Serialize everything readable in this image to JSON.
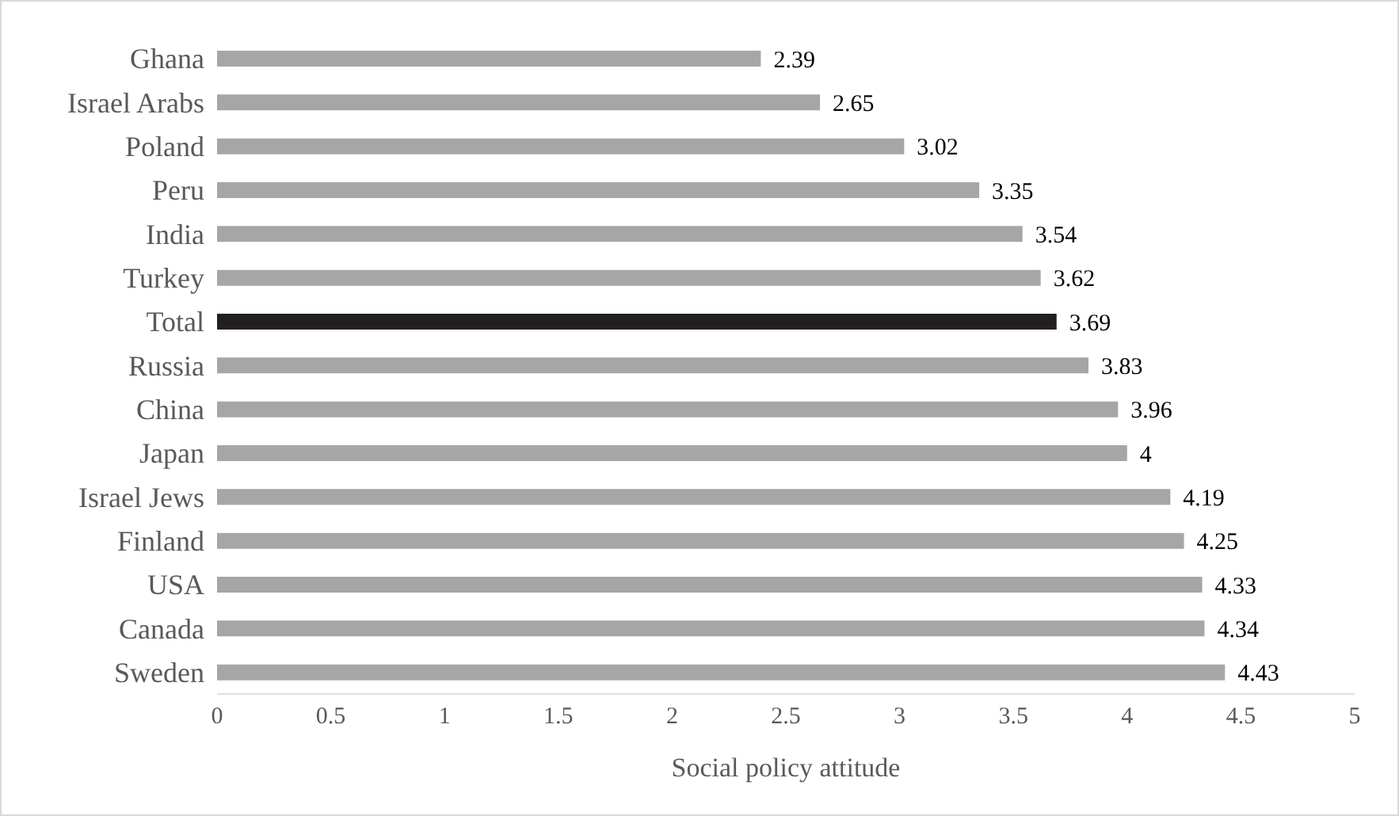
{
  "chart_data": {
    "type": "bar",
    "orientation": "horizontal",
    "xlabel": "Social policy attitude",
    "categories": [
      "Ghana",
      "Israel Arabs",
      "Poland",
      "Peru",
      "India",
      "Turkey",
      "Total",
      "Russia",
      "China",
      "Japan",
      "Israel Jews",
      "Finland",
      "USA",
      "Canada",
      "Sweden"
    ],
    "values": [
      2.39,
      2.65,
      3.02,
      3.35,
      3.54,
      3.62,
      3.69,
      3.83,
      3.96,
      4,
      4.19,
      4.25,
      4.33,
      4.34,
      4.43
    ],
    "colors": [
      "#a6a6a6",
      "#a6a6a6",
      "#a6a6a6",
      "#a6a6a6",
      "#a6a6a6",
      "#a6a6a6",
      "#231f20",
      "#a6a6a6",
      "#a6a6a6",
      "#a6a6a6",
      "#a6a6a6",
      "#a6a6a6",
      "#a6a6a6",
      "#a6a6a6",
      "#a6a6a6"
    ],
    "xlim": [
      0,
      5
    ],
    "xticks": [
      0,
      0.5,
      1,
      1.5,
      2,
      2.5,
      3,
      3.5,
      4,
      4.5,
      5
    ],
    "grid": false,
    "data_labels": true,
    "legend": false
  }
}
